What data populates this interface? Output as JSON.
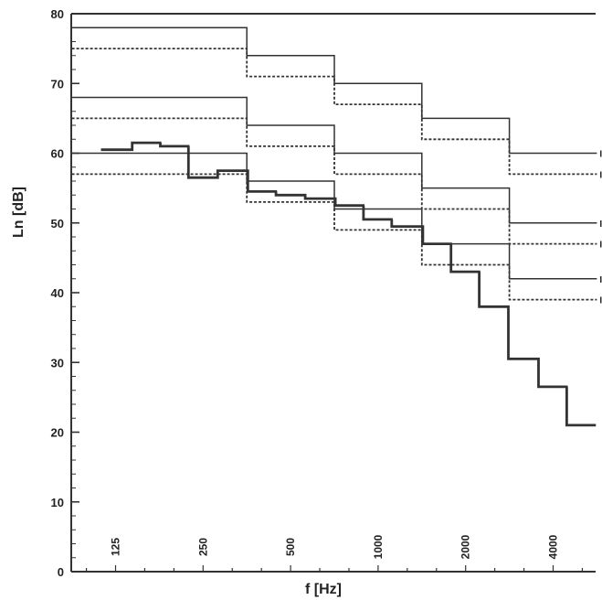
{
  "chart_data": {
    "type": "line",
    "title": "",
    "xlabel": "f [Hz]",
    "ylabel": "Ln  [dB]",
    "x_scale": "log",
    "xlim": [
      88,
      5600
    ],
    "ylim": [
      0,
      80
    ],
    "y_ticks": [
      0,
      10,
      20,
      30,
      40,
      50,
      60,
      70,
      80
    ],
    "x_ticks": [
      125,
      250,
      500,
      1000,
      2000,
      4000
    ],
    "x_tick_labels": [
      "125",
      "250",
      "500",
      "1000",
      "2000",
      "4000"
    ],
    "grid": false,
    "series": [
      {
        "name": "III b",
        "style": "solid",
        "x": [
          125,
          250,
          500,
          1000,
          2000,
          4000
        ],
        "values": [
          78,
          78,
          74,
          70,
          65,
          60
        ]
      },
      {
        "name": "III a",
        "style": "dotted",
        "x": [
          125,
          250,
          500,
          1000,
          2000,
          4000
        ],
        "values": [
          75,
          75,
          71,
          67,
          62,
          57
        ]
      },
      {
        "name": "II b",
        "style": "solid",
        "x": [
          125,
          250,
          500,
          1000,
          2000,
          4000
        ],
        "values": [
          68,
          68,
          64,
          60,
          55,
          50
        ]
      },
      {
        "name": "II a",
        "style": "dotted",
        "x": [
          125,
          250,
          500,
          1000,
          2000,
          4000
        ],
        "values": [
          65,
          65,
          61,
          57,
          52,
          47
        ]
      },
      {
        "name": "I b",
        "style": "solid",
        "x": [
          125,
          250,
          500,
          1000,
          2000,
          4000
        ],
        "values": [
          60,
          60,
          56,
          52,
          47,
          42
        ]
      },
      {
        "name": "I a",
        "style": "dotted",
        "x": [
          125,
          250,
          500,
          1000,
          2000,
          4000
        ],
        "values": [
          57,
          57,
          53,
          49,
          44,
          39
        ]
      },
      {
        "name": "",
        "style": "bold",
        "x": [
          125,
          160,
          200,
          250,
          315,
          400,
          500,
          630,
          800,
          1000,
          1250,
          1600,
          2000,
          2500,
          3150,
          4000,
          5000
        ],
        "values": [
          60.5,
          61.5,
          61.0,
          56.5,
          57.5,
          54.5,
          54.0,
          53.5,
          52.5,
          50.5,
          49.5,
          47.0,
          43.0,
          38.0,
          30.5,
          26.5,
          21.0
        ]
      }
    ]
  }
}
